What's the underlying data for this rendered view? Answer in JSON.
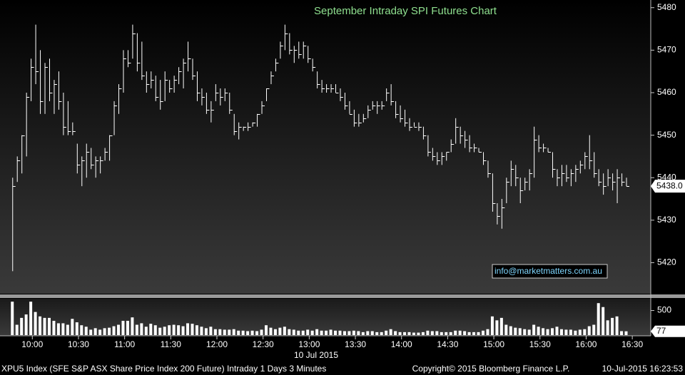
{
  "chart_data": [
    {
      "type": "ohlc",
      "title": "September Intraday SPI Futures Chart",
      "x": [
        "09:47",
        "09:50",
        "09:53",
        "09:56",
        "09:59",
        "10:02",
        "10:05",
        "10:08",
        "10:11",
        "10:14",
        "10:17",
        "10:20",
        "10:23",
        "10:26",
        "10:29",
        "10:32",
        "10:35",
        "10:38",
        "10:41",
        "10:44",
        "10:47",
        "10:50",
        "10:53",
        "10:56",
        "10:59",
        "11:02",
        "11:05",
        "11:08",
        "11:11",
        "11:14",
        "11:17",
        "11:20",
        "11:23",
        "11:26",
        "11:29",
        "11:32",
        "11:35",
        "11:38",
        "11:41",
        "11:44",
        "11:47",
        "11:50",
        "11:53",
        "11:56",
        "11:59",
        "12:02",
        "12:05",
        "12:08",
        "12:11",
        "12:14",
        "12:17",
        "12:20",
        "12:23",
        "12:26",
        "12:29",
        "12:32",
        "12:35",
        "12:38",
        "12:41",
        "12:44",
        "12:47",
        "12:50",
        "12:53",
        "12:56",
        "12:59",
        "13:02",
        "13:05",
        "13:08",
        "13:11",
        "13:14",
        "13:17",
        "13:20",
        "13:23",
        "13:26",
        "13:29",
        "13:32",
        "13:35",
        "13:38",
        "13:41",
        "13:44",
        "13:47",
        "13:50",
        "13:53",
        "13:56",
        "13:59",
        "14:02",
        "14:05",
        "14:08",
        "14:11",
        "14:14",
        "14:17",
        "14:20",
        "14:23",
        "14:26",
        "14:29",
        "14:32",
        "14:35",
        "14:38",
        "14:41",
        "14:44",
        "14:47",
        "14:50",
        "14:53",
        "14:56",
        "14:59",
        "15:02",
        "15:05",
        "15:08",
        "15:11",
        "15:14",
        "15:17",
        "15:20",
        "15:23",
        "15:26",
        "15:29",
        "15:32",
        "15:35",
        "15:38",
        "15:41",
        "15:44",
        "15:47",
        "15:50",
        "15:53",
        "15:56",
        "15:59",
        "16:02",
        "16:05",
        "16:08",
        "16:11",
        "16:14",
        "16:17",
        "16:20",
        "16:23",
        "16:26"
      ],
      "high": [
        5440,
        5445,
        5450,
        5460,
        5468,
        5476,
        5470,
        5467,
        5468,
        5463,
        5465,
        5460,
        5458,
        5453,
        5448,
        5445,
        5448,
        5447,
        5445,
        5445,
        5447,
        5450,
        5458,
        5462,
        5470,
        5470,
        5476,
        5474,
        5472,
        5465,
        5465,
        5464,
        5463,
        5465,
        5463,
        5464,
        5466,
        5468,
        5472,
        5468,
        5465,
        5461,
        5460,
        5458,
        5462,
        5461,
        5461,
        5460,
        5455,
        5453,
        5452,
        5453,
        5453,
        5455,
        5458,
        5461,
        5465,
        5468,
        5472,
        5476,
        5474,
        5471,
        5472,
        5472,
        5471,
        5468,
        5465,
        5463,
        5462,
        5462,
        5462,
        5461,
        5460,
        5458,
        5456,
        5455,
        5455,
        5457,
        5458,
        5458,
        5458,
        5461,
        5462,
        5458,
        5457,
        5456,
        5454,
        5453,
        5453,
        5452,
        5450,
        5447,
        5446,
        5446,
        5446,
        5449,
        5454,
        5452,
        5451,
        5450,
        5448,
        5447,
        5446,
        5444,
        5441,
        5434,
        5435,
        5440,
        5444,
        5443,
        5440,
        5440,
        5442,
        5452,
        5450,
        5448,
        5447,
        5446,
        5442,
        5443,
        5443,
        5442,
        5443,
        5444,
        5446,
        5450,
        5446,
        5442,
        5441,
        5442,
        5441,
        5442,
        5441,
        5440
      ],
      "low": [
        5418,
        5439,
        5441,
        5445,
        5458,
        5462,
        5455,
        5455,
        5458,
        5455,
        5456,
        5450,
        5450,
        5450,
        5441,
        5438,
        5440,
        5442,
        5440,
        5441,
        5444,
        5444,
        5450,
        5455,
        5460,
        5466,
        5468,
        5465,
        5463,
        5460,
        5461,
        5458,
        5456,
        5458,
        5460,
        5460,
        5462,
        5461,
        5465,
        5463,
        5458,
        5457,
        5455,
        5453,
        5458,
        5457,
        5458,
        5455,
        5450,
        5449,
        5451,
        5451,
        5452,
        5452,
        5455,
        5458,
        5462,
        5465,
        5468,
        5470,
        5469,
        5467,
        5468,
        5468,
        5467,
        5465,
        5461,
        5460,
        5460,
        5460,
        5460,
        5458,
        5456,
        5455,
        5452,
        5452,
        5453,
        5454,
        5456,
        5455,
        5456,
        5458,
        5457,
        5454,
        5453,
        5452,
        5451,
        5452,
        5451,
        5449,
        5445,
        5444,
        5443,
        5443,
        5444,
        5446,
        5448,
        5448,
        5447,
        5446,
        5446,
        5446,
        5443,
        5440,
        5432,
        5429,
        5428,
        5434,
        5438,
        5438,
        5434,
        5437,
        5437,
        5440,
        5446,
        5446,
        5446,
        5440,
        5438,
        5438,
        5439,
        5438,
        5439,
        5441,
        5442,
        5442,
        5440,
        5438,
        5436,
        5438,
        5437,
        5434,
        5438,
        5438
      ],
      "close": [
        5438,
        5444,
        5450,
        5459,
        5466,
        5465,
        5458,
        5466,
        5460,
        5462,
        5458,
        5452,
        5451,
        5451,
        5443,
        5444,
        5446,
        5443,
        5444,
        5444,
        5446,
        5450,
        5457,
        5461,
        5468,
        5467,
        5474,
        5467,
        5464,
        5462,
        5463,
        5459,
        5458,
        5463,
        5461,
        5463,
        5465,
        5467,
        5468,
        5464,
        5460,
        5459,
        5456,
        5456,
        5460,
        5459,
        5460,
        5456,
        5451,
        5452,
        5452,
        5452,
        5453,
        5455,
        5457,
        5461,
        5464,
        5467,
        5471,
        5474,
        5470,
        5470,
        5469,
        5471,
        5468,
        5466,
        5462,
        5461,
        5461,
        5461,
        5460,
        5459,
        5457,
        5455,
        5453,
        5453,
        5454,
        5456,
        5457,
        5457,
        5457,
        5460,
        5458,
        5455,
        5454,
        5453,
        5452,
        5452,
        5452,
        5450,
        5446,
        5445,
        5444,
        5445,
        5446,
        5448,
        5452,
        5450,
        5449,
        5447,
        5447,
        5446,
        5444,
        5441,
        5434,
        5431,
        5433,
        5439,
        5442,
        5440,
        5437,
        5439,
        5441,
        5449,
        5447,
        5447,
        5446,
        5442,
        5440,
        5441,
        5440,
        5441,
        5442,
        5443,
        5445,
        5444,
        5441,
        5439,
        5438,
        5440,
        5439,
        5440,
        5439,
        5438
      ],
      "color": "#ffffff",
      "xlim": [
        "09:39",
        "16:42"
      ],
      "xticks": [
        "10:00",
        "10:30",
        "11:00",
        "11:30",
        "12:00",
        "12:30",
        "13:00",
        "13:30",
        "14:00",
        "14:30",
        "15:00",
        "15:30",
        "16:00",
        "16:30"
      ],
      "xlabel": "10 Jul 2015",
      "ylim": [
        5412.7,
        5481.8
      ],
      "yticks": [
        5420,
        5430,
        5440,
        5450,
        5460,
        5470,
        5480
      ],
      "last_price": {
        "value": 5438,
        "label": "5438.0"
      },
      "annotation": "info@marketmatters.com.au"
    },
    {
      "type": "bar",
      "values": [
        680,
        210,
        350,
        420,
        680,
        470,
        380,
        350,
        350,
        290,
        240,
        240,
        210,
        330,
        260,
        200,
        170,
        110,
        140,
        110,
        140,
        150,
        180,
        210,
        290,
        290,
        360,
        210,
        240,
        170,
        230,
        200,
        150,
        170,
        200,
        210,
        200,
        180,
        240,
        230,
        200,
        170,
        140,
        170,
        120,
        120,
        110,
        110,
        120,
        90,
        90,
        80,
        90,
        80,
        110,
        200,
        150,
        120,
        150,
        170,
        120,
        110,
        90,
        90,
        110,
        90,
        120,
        90,
        90,
        110,
        90,
        90,
        80,
        80,
        90,
        80,
        60,
        80,
        80,
        60,
        60,
        90,
        120,
        80,
        60,
        60,
        60,
        50,
        50,
        60,
        90,
        80,
        80,
        60,
        60,
        60,
        90,
        90,
        80,
        60,
        60,
        60,
        90,
        120,
        380,
        300,
        350,
        210,
        180,
        150,
        140,
        120,
        110,
        210,
        170,
        140,
        120,
        140,
        170,
        120,
        110,
        110,
        90,
        110,
        120,
        180,
        210,
        650,
        570,
        300,
        350,
        380,
        80,
        77
      ],
      "color": "#ffffff",
      "ylim": [
        0,
        740
      ],
      "yticks": [
        500
      ]
    }
  ],
  "footer": {
    "left": "XPU5 Index (SFE S&P ASX Share Price Index 200 Future) Intraday 1 Days 3 Minutes",
    "center": "Copyright© 2015 Bloomberg Finance L.P.",
    "right": "10-Jul-2015 16:23:53"
  }
}
